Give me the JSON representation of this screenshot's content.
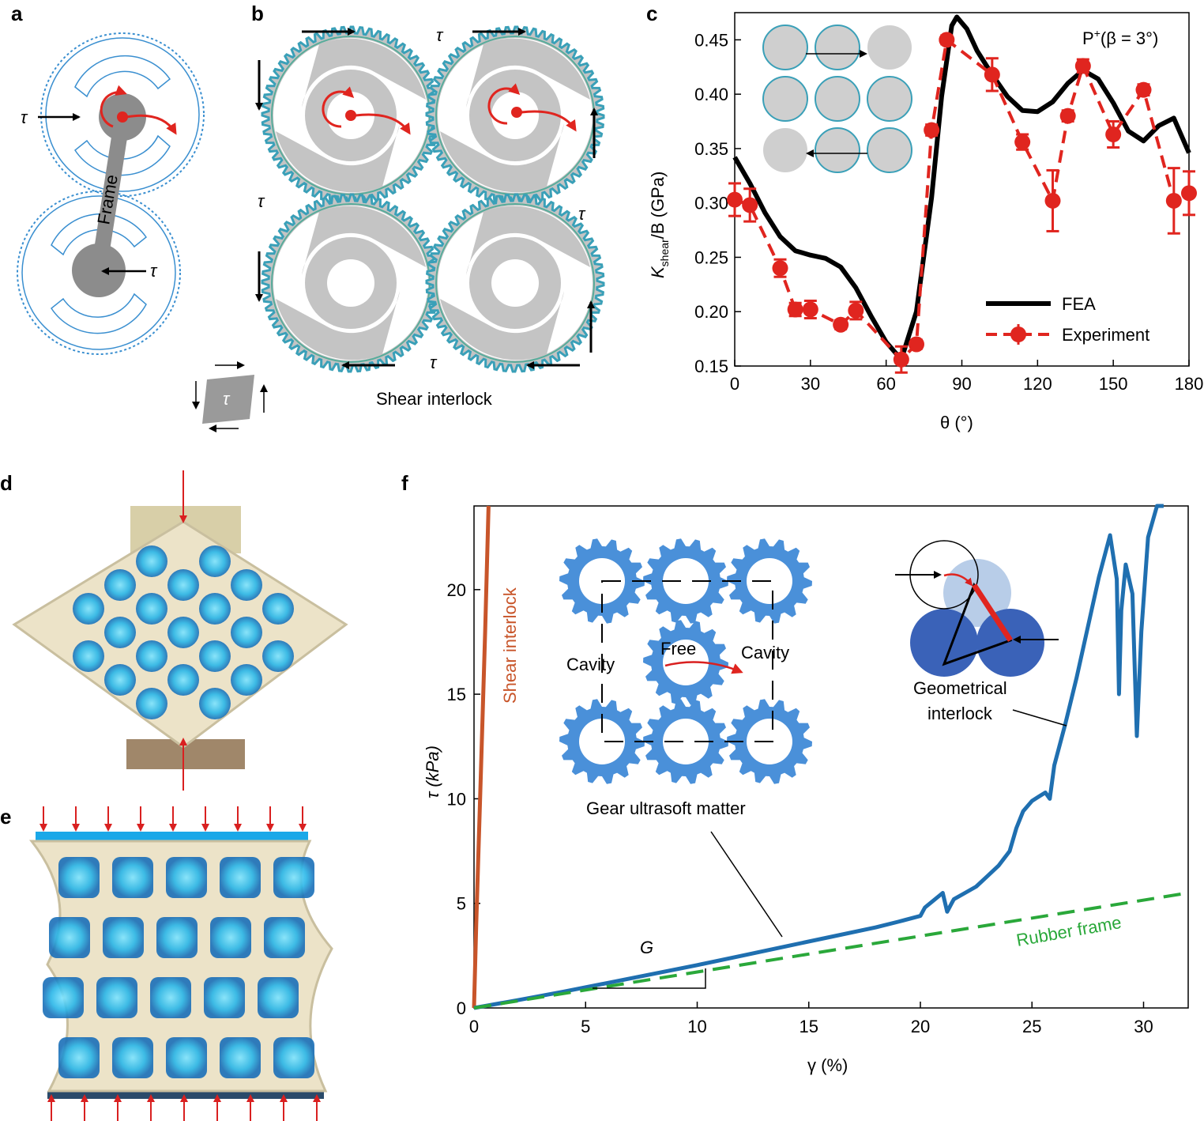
{
  "panels": {
    "a": {
      "letter": "a",
      "tau_left": "τ",
      "tau_right": "τ",
      "frame_label": "Frame"
    },
    "b": {
      "letter": "b",
      "tau_labels": [
        "τ",
        "τ",
        "τ",
        "τ"
      ],
      "caption": "Shear interlock",
      "icon_tau": "τ"
    },
    "c": {
      "letter": "c",
      "annotation_base": "P",
      "annotation_sup": "+",
      "annotation_rest": "(β = 3°)"
    },
    "d": {
      "letter": "d"
    },
    "e": {
      "letter": "e"
    },
    "f": {
      "letter": "f",
      "shear_label": "Shear interlock",
      "rubber_label": "Rubber frame",
      "gear_caption": "Gear ultrasoft matter",
      "free_label": "Free",
      "cavity_left": "Cavity",
      "cavity_right": "Cavity",
      "geom_label_1": "Geometrical",
      "geom_label_2": "interlock",
      "slope_label": "G"
    }
  },
  "colors": {
    "fea": "#000000",
    "experiment": "#e0251f",
    "shear": "#c8552a",
    "gear_curve": "#1f6fb0",
    "rubber": "#2aa83a",
    "gear_fill": "#4a90d9",
    "photo_frame": "#ece3c8",
    "photo_blue": "#29b6e8",
    "red_arrow": "#d92020"
  },
  "icons": [
    "gear-icon",
    "arrow-icon",
    "rotation-arrow-icon"
  ],
  "chart_data": [
    {
      "id": "c",
      "type": "line",
      "ylabel_main": "K",
      "ylabel_sub": "shear",
      "ylabel_rest": "/B (GPa)",
      "xlabel": "θ (°)",
      "xlim": [
        0,
        180
      ],
      "ylim": [
        0.15,
        0.475
      ],
      "xticks": [
        0,
        30,
        60,
        90,
        120,
        150,
        180
      ],
      "yticks": [
        0.15,
        0.2,
        0.25,
        0.3,
        0.35,
        0.4,
        0.45
      ],
      "legend": [
        "FEA",
        "Experiment"
      ],
      "legend_position": "bottom-right",
      "series": [
        {
          "name": "FEA",
          "x": [
            0,
            6,
            12,
            18,
            24,
            30,
            36,
            42,
            48,
            54,
            60,
            66,
            72,
            78,
            82,
            86,
            88,
            92,
            96,
            102,
            108,
            114,
            120,
            126,
            132,
            138,
            144,
            150,
            156,
            162,
            168,
            174,
            180
          ],
          "y": [
            0.342,
            0.318,
            0.291,
            0.269,
            0.256,
            0.252,
            0.249,
            0.241,
            0.222,
            0.196,
            0.172,
            0.156,
            0.2,
            0.305,
            0.398,
            0.463,
            0.471,
            0.46,
            0.44,
            0.418,
            0.398,
            0.385,
            0.384,
            0.393,
            0.41,
            0.422,
            0.414,
            0.392,
            0.366,
            0.357,
            0.371,
            0.378,
            0.346
          ]
        },
        {
          "name": "Experiment",
          "x": [
            0,
            6,
            18,
            24,
            30,
            42,
            48,
            66,
            72,
            78,
            84,
            102,
            114,
            126,
            132,
            138,
            150,
            162,
            174,
            180
          ],
          "y": [
            0.303,
            0.298,
            0.24,
            0.202,
            0.202,
            0.188,
            0.201,
            0.156,
            0.17,
            0.367,
            0.45,
            0.418,
            0.356,
            0.302,
            0.38,
            0.426,
            0.363,
            0.404,
            0.302,
            0.309
          ],
          "err": [
            0.015,
            0.015,
            0.008,
            0.006,
            0.008,
            0.004,
            0.008,
            0.012,
            0.004,
            0.005,
            0.004,
            0.015,
            0.007,
            0.028,
            0.005,
            0.006,
            0.012,
            0.005,
            0.03,
            0.02
          ]
        }
      ]
    },
    {
      "id": "f",
      "type": "line",
      "ylabel": "τ (kPa)",
      "xlabel": "γ (%)",
      "xlim": [
        0,
        32
      ],
      "ylim": [
        0,
        24
      ],
      "xticks": [
        0,
        5,
        10,
        15,
        20,
        25,
        30
      ],
      "yticks": [
        0,
        5,
        10,
        15,
        20
      ],
      "series": [
        {
          "name": "Shear interlock",
          "x": [
            0,
            0.1,
            0.3,
            0.5,
            0.65
          ],
          "y": [
            0,
            4,
            11,
            18,
            24
          ]
        },
        {
          "name": "Gear ultrasoft matter",
          "x": [
            0,
            2,
            4,
            6,
            8,
            10,
            12,
            14,
            16,
            18,
            19,
            20,
            20.2,
            21,
            21.2,
            21.4,
            21.5,
            22,
            22.5,
            23,
            23.5,
            24,
            24.3,
            24.6,
            25,
            25.3,
            25.6,
            25.8,
            26,
            26.5,
            27,
            27.5,
            28,
            28.5,
            28.8,
            28.9,
            29,
            29.2,
            29.5,
            29.7,
            29.9,
            30.2,
            30.6,
            30.9
          ],
          "y": [
            0,
            0.38,
            0.78,
            1.2,
            1.62,
            2.05,
            2.5,
            2.95,
            3.4,
            3.85,
            4.12,
            4.4,
            4.8,
            5.5,
            4.6,
            5.0,
            5.2,
            5.5,
            5.8,
            6.3,
            6.8,
            7.5,
            8.6,
            9.4,
            9.9,
            10.1,
            10.3,
            10.0,
            11.6,
            13.6,
            15.8,
            18.2,
            20.6,
            22.6,
            20.5,
            15.0,
            19.0,
            21.2,
            19.8,
            13.0,
            18.0,
            22.5,
            24.0,
            24.0
          ]
        },
        {
          "name": "Rubber frame",
          "x": [
            0,
            32
          ],
          "y": [
            0,
            5.5
          ]
        }
      ]
    }
  ]
}
